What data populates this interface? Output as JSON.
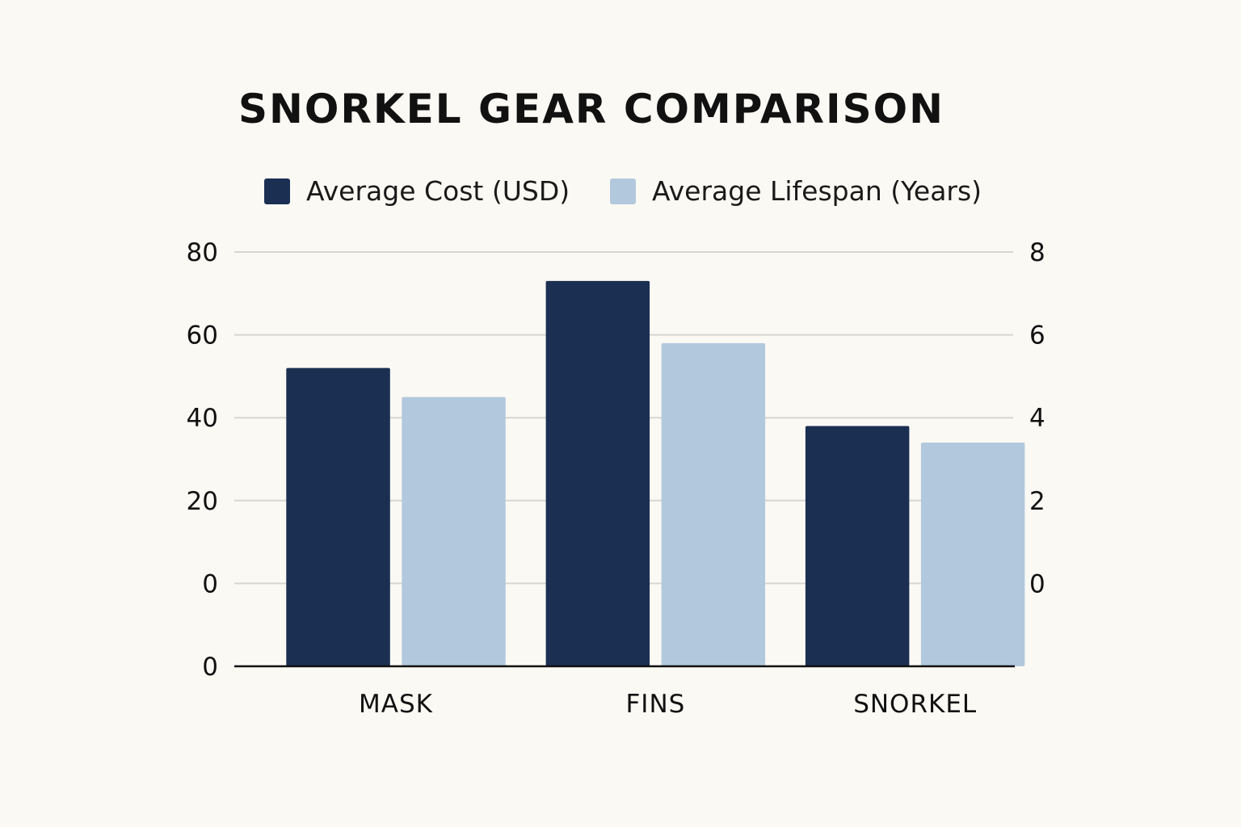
{
  "chart_data": {
    "type": "bar",
    "title": "SNORKEL GEAR COMPARISON",
    "categories": [
      "MASK",
      "FINS",
      "SNORKEL"
    ],
    "series": [
      {
        "name": "Average Cost (USD)",
        "axis": "left",
        "color": "#1b2f52",
        "values": [
          52,
          73,
          38
        ]
      },
      {
        "name": "Average Lifespan (Years)",
        "axis": "right",
        "color": "#b2c9dd",
        "values": [
          4.5,
          5.8,
          3.4
        ]
      }
    ],
    "left_axis": {
      "label": "",
      "ticks": [
        "80",
        "60",
        "40",
        "20",
        "0",
        "0"
      ],
      "ylim": [
        -20,
        80
      ]
    },
    "right_axis": {
      "label": "",
      "ticks": [
        "8",
        "6",
        "4",
        "2",
        "0"
      ],
      "ylim": [
        -2,
        8
      ]
    },
    "grid": true,
    "legend": "top"
  }
}
